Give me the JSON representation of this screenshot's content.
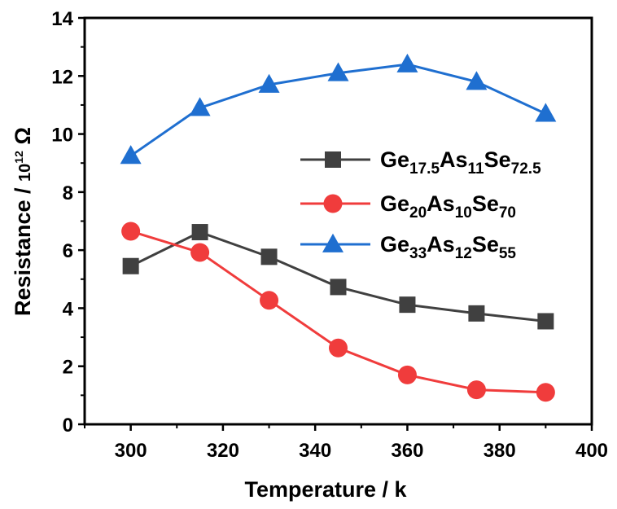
{
  "chart_data": {
    "type": "line",
    "title": "",
    "xlabel": "Temperature / k",
    "ylabel": {
      "main": "Resistance / ",
      "unit_base": "10",
      "unit_exp": "12",
      "unit_symbol": " Ω"
    },
    "xlim": [
      290,
      400
    ],
    "ylim": [
      0,
      14
    ],
    "x_ticks": [
      300,
      320,
      340,
      360,
      380,
      400
    ],
    "y_ticks": [
      0,
      2,
      4,
      6,
      8,
      10,
      12,
      14
    ],
    "x_tick_labels": [
      "300",
      "320",
      "340",
      "360",
      "380",
      "400"
    ],
    "y_tick_labels": [
      "0",
      "2",
      "4",
      "6",
      "8",
      "10",
      "12",
      "14"
    ],
    "x": [
      300,
      315,
      330,
      345,
      360,
      375,
      390
    ],
    "legend_position": "center-right",
    "series": [
      {
        "name": "Ge17.5As11Se72.5",
        "label_parts": [
          [
            "Ge",
            ""
          ],
          [
            "17.5",
            "sub"
          ],
          [
            "As",
            ""
          ],
          [
            "11",
            "sub"
          ],
          [
            "Se",
            ""
          ],
          [
            "72.5",
            "sub"
          ]
        ],
        "color": "#404040",
        "marker": "square",
        "values": [
          5.45,
          6.62,
          5.77,
          4.73,
          4.12,
          3.82,
          3.55
        ]
      },
      {
        "name": "Ge20As10Se70",
        "label_parts": [
          [
            "Ge",
            ""
          ],
          [
            "20",
            "sub"
          ],
          [
            "As",
            ""
          ],
          [
            "10",
            "sub"
          ],
          [
            "Se",
            ""
          ],
          [
            "70",
            "sub"
          ]
        ],
        "color": "#f03c3c",
        "marker": "circle",
        "values": [
          6.65,
          5.92,
          4.27,
          2.63,
          1.7,
          1.19,
          1.1
        ]
      },
      {
        "name": "Ge33As12Se55",
        "label_parts": [
          [
            "Ge",
            ""
          ],
          [
            "33",
            "sub"
          ],
          [
            "As",
            ""
          ],
          [
            "12",
            "sub"
          ],
          [
            "Se",
            ""
          ],
          [
            "55",
            "sub"
          ]
        ],
        "color": "#1f6fd0",
        "marker": "triangle",
        "values": [
          9.25,
          10.9,
          11.7,
          12.1,
          12.4,
          11.8,
          10.7
        ]
      }
    ]
  }
}
